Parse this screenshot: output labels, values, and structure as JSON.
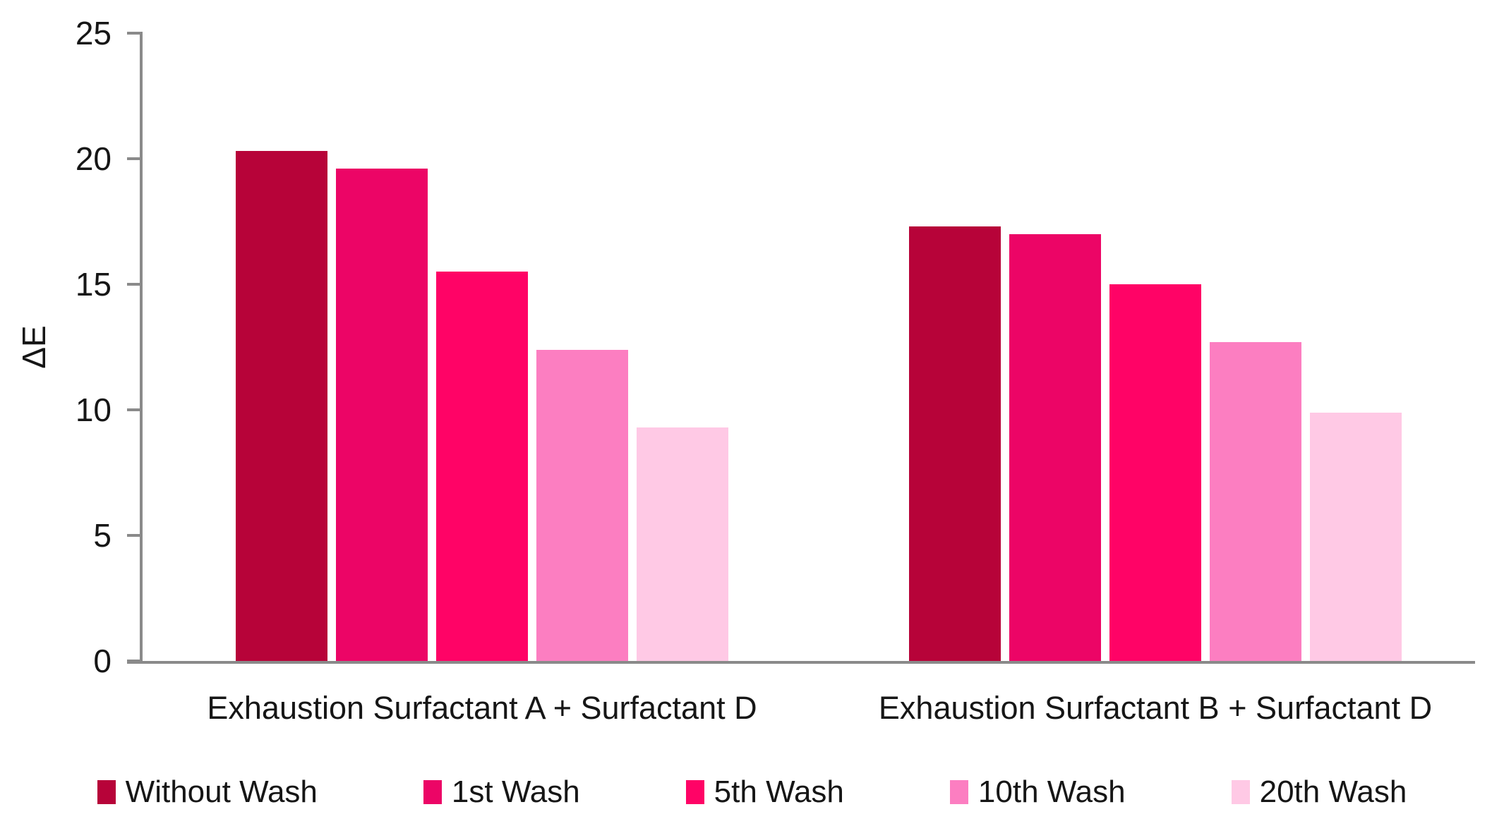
{
  "chart_data": {
    "type": "bar",
    "categories": [
      "Exhaustion Surfactant A + Surfactant D",
      "Exhaustion Surfactant B + Surfactant D"
    ],
    "series": [
      {
        "name": "Without Wash",
        "color": "#B70339",
        "values": [
          20.3,
          17.3
        ]
      },
      {
        "name": "1st Wash",
        "color": "#EC0566",
        "values": [
          19.6,
          17.0
        ]
      },
      {
        "name": "5th Wash",
        "color": "#FF0366",
        "values": [
          15.5,
          15.0
        ]
      },
      {
        "name": "10th Wash",
        "color": "#FC7EC1",
        "values": [
          12.4,
          12.7
        ]
      },
      {
        "name": "20th Wash",
        "color": "#FFC9E5",
        "values": [
          9.3,
          9.9
        ]
      }
    ],
    "title": "",
    "xlabel": "",
    "ylabel": "ΔE",
    "ylim": [
      0,
      25
    ],
    "yticks": [
      0,
      5,
      10,
      15,
      20,
      25
    ],
    "grid": false,
    "legend_position": "bottom",
    "axis_color": "#8A8A8A",
    "text_color": "#161616"
  }
}
